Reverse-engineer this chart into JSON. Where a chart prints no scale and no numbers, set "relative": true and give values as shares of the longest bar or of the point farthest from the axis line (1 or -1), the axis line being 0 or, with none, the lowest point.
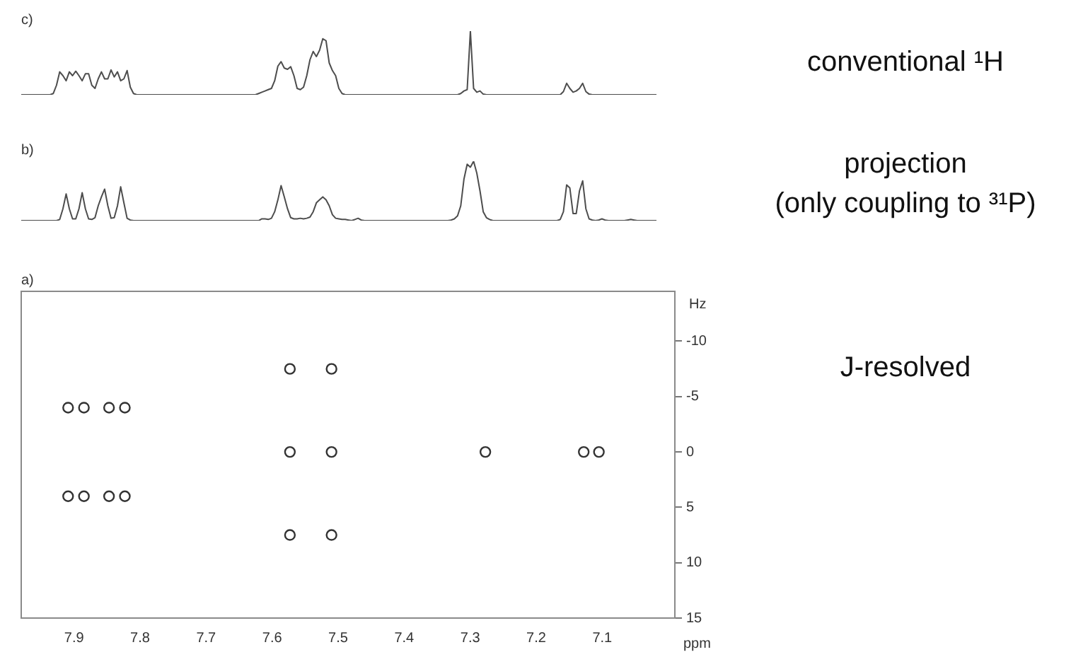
{
  "chart_data": [
    {
      "type": "line",
      "title": "c)",
      "relative": true,
      "annotations": [
        "conventional ¹H"
      ],
      "categories": [
        null,
        null,
        null,
        null,
        null,
        null,
        null,
        null,
        null,
        null,
        null,
        null,
        null,
        null,
        null,
        null,
        null,
        null,
        null,
        null,
        null,
        null,
        null,
        null,
        null,
        null,
        null,
        null,
        null,
        null,
        null,
        null,
        null,
        null,
        null,
        null,
        null,
        null,
        null,
        null,
        null,
        null,
        null,
        null,
        null,
        null,
        null,
        null,
        null,
        null,
        null,
        null,
        null,
        null,
        null,
        null,
        null,
        null,
        null,
        null,
        null,
        null,
        null,
        null,
        null,
        null,
        null,
        null,
        null,
        null,
        null,
        null,
        null,
        null,
        null,
        null,
        null,
        null,
        null,
        null,
        null,
        null,
        null,
        null,
        null,
        null,
        null,
        null,
        null,
        null,
        null,
        null,
        null,
        null,
        null,
        null,
        null,
        null,
        null,
        null,
        null,
        null,
        null,
        null,
        null,
        null,
        null,
        null,
        null,
        null,
        null,
        null,
        null,
        null,
        null,
        null,
        null,
        null,
        null,
        null,
        null,
        null,
        null,
        null,
        null,
        null,
        null,
        null,
        null,
        null,
        null,
        null,
        null,
        null,
        null,
        null,
        null,
        null,
        null,
        null,
        null,
        null,
        null,
        null,
        null,
        null,
        null,
        null,
        null,
        null,
        null,
        null,
        null,
        null,
        null,
        null,
        null,
        null,
        null,
        null,
        null,
        null,
        null,
        null,
        null,
        null,
        null,
        null,
        null,
        null,
        null,
        null,
        null,
        null,
        null,
        null,
        null,
        null,
        null,
        null,
        null,
        null,
        null,
        null,
        null,
        null,
        null,
        null,
        null,
        null,
        null,
        null,
        null,
        null,
        null,
        null,
        null,
        null,
        null
      ],
      "series": [
        {
          "color": "#4d4d4d",
          "values": [
            0,
            0,
            0,
            0,
            0,
            0,
            0,
            0,
            0,
            0,
            0.02,
            0.15,
            0.36,
            0.3,
            0.22,
            0.36,
            0.3,
            0.37,
            0.3,
            0.22,
            0.33,
            0.33,
            0.15,
            0.1,
            0.25,
            0.36,
            0.25,
            0.25,
            0.39,
            0.28,
            0.36,
            0.22,
            0.25,
            0.38,
            0.12,
            0.02,
            0,
            0,
            0,
            0,
            0,
            0,
            0,
            0,
            0,
            0,
            0,
            0,
            0,
            0,
            0,
            0,
            0,
            0,
            0,
            0,
            0,
            0,
            0,
            0,
            0,
            0,
            0,
            0,
            0,
            0,
            0,
            0,
            0,
            0,
            0,
            0,
            0,
            0,
            0.02,
            0.04,
            0.06,
            0.08,
            0.1,
            0.22,
            0.45,
            0.52,
            0.42,
            0.4,
            0.44,
            0.3,
            0.1,
            0.08,
            0.12,
            0.3,
            0.55,
            0.68,
            0.6,
            0.7,
            0.88,
            0.85,
            0.5,
            0.38,
            0.3,
            0.1,
            0.02,
            0,
            0,
            0,
            0,
            0,
            0,
            0,
            0,
            0,
            0,
            0,
            0,
            0,
            0,
            0,
            0,
            0,
            0,
            0,
            0,
            0,
            0,
            0,
            0,
            0,
            0,
            0,
            0,
            0,
            0,
            0,
            0,
            0,
            0,
            0,
            0,
            0.02,
            0.06,
            0.08,
            1,
            0.1,
            0.04,
            0.06,
            0.01,
            0,
            0,
            0,
            0,
            0,
            0,
            0,
            0,
            0,
            0,
            0,
            0,
            0,
            0,
            0,
            0,
            0,
            0,
            0,
            0,
            0,
            0,
            0,
            0,
            0.05,
            0.18,
            0.1,
            0.04,
            0.06,
            0.1,
            0.18,
            0.05,
            0.01,
            0,
            0,
            0,
            0,
            0,
            0,
            0,
            0,
            0,
            0,
            0,
            0,
            0,
            0,
            0,
            0,
            0,
            0,
            0,
            0,
            0
          ]
        }
      ]
    },
    {
      "type": "line",
      "title": "b)",
      "relative": true,
      "annotations": [
        "projection\n(only coupling to ³¹P)"
      ],
      "categories": [
        null,
        null,
        null,
        null,
        null,
        null,
        null,
        null,
        null,
        null,
        null,
        null,
        null,
        null,
        null,
        null,
        null,
        null,
        null,
        null,
        null,
        null,
        null,
        null,
        null,
        null,
        null,
        null,
        null,
        null,
        null,
        null,
        null,
        null,
        null,
        null,
        null,
        null,
        null,
        null,
        null,
        null,
        null,
        null,
        null,
        null,
        null,
        null,
        null,
        null,
        null,
        null,
        null,
        null,
        null,
        null,
        null,
        null,
        null,
        null,
        null,
        null,
        null,
        null,
        null,
        null,
        null,
        null,
        null,
        null,
        null,
        null,
        null,
        null,
        null,
        null,
        null,
        null,
        null,
        null,
        null,
        null,
        null,
        null,
        null,
        null,
        null,
        null,
        null,
        null,
        null,
        null,
        null,
        null,
        null,
        null,
        null,
        null,
        null,
        null,
        null,
        null,
        null,
        null,
        null,
        null,
        null,
        null,
        null,
        null,
        null,
        null,
        null,
        null,
        null,
        null,
        null,
        null,
        null,
        null,
        null,
        null,
        null,
        null,
        null,
        null,
        null,
        null,
        null,
        null,
        null,
        null,
        null,
        null,
        null,
        null,
        null,
        null,
        null,
        null,
        null,
        null,
        null,
        null,
        null,
        null,
        null,
        null,
        null,
        null,
        null,
        null,
        null,
        null,
        null,
        null,
        null,
        null,
        null,
        null,
        null,
        null,
        null,
        null,
        null,
        null,
        null,
        null,
        null,
        null,
        null,
        null,
        null,
        null,
        null,
        null,
        null,
        null,
        null,
        null,
        null,
        null,
        null,
        null,
        null,
        null,
        null,
        null,
        null,
        null,
        null,
        null,
        null,
        null,
        null,
        null,
        null,
        null,
        null
      ],
      "series": [
        {
          "color": "#4d4d4d",
          "values": [
            0,
            0,
            0,
            0,
            0,
            0,
            0,
            0,
            0,
            0,
            0,
            0,
            0.02,
            0.2,
            0.45,
            0.2,
            0.03,
            0.03,
            0.2,
            0.47,
            0.2,
            0.03,
            0.02,
            0.05,
            0.25,
            0.4,
            0.53,
            0.25,
            0.04,
            0.05,
            0.25,
            0.57,
            0.3,
            0.04,
            0.01,
            0,
            0,
            0,
            0,
            0,
            0,
            0,
            0,
            0,
            0,
            0,
            0,
            0,
            0,
            0,
            0,
            0,
            0,
            0,
            0,
            0,
            0,
            0,
            0,
            0,
            0,
            0,
            0,
            0,
            0,
            0,
            0,
            0,
            0,
            0,
            0,
            0,
            0,
            0,
            0,
            0.03,
            0.03,
            0.02,
            0.04,
            0.15,
            0.35,
            0.59,
            0.4,
            0.2,
            0.05,
            0.03,
            0.03,
            0.04,
            0.03,
            0.04,
            0.06,
            0.15,
            0.3,
            0.35,
            0.4,
            0.35,
            0.25,
            0.1,
            0.04,
            0.03,
            0.02,
            0.02,
            0.01,
            0,
            0.02,
            0.04,
            0.01,
            0,
            0,
            0,
            0,
            0,
            0,
            0,
            0,
            0,
            0,
            0,
            0,
            0,
            0,
            0,
            0,
            0,
            0,
            0,
            0,
            0,
            0,
            0,
            0,
            0,
            0,
            0,
            0.01,
            0.03,
            0.08,
            0.25,
            0.7,
            0.95,
            0.9,
            1,
            0.8,
            0.5,
            0.15,
            0.05,
            0.02,
            0,
            0,
            0,
            0,
            0,
            0,
            0,
            0,
            0,
            0,
            0,
            0,
            0,
            0,
            0,
            0,
            0,
            0,
            0,
            0,
            0,
            0.02,
            0.15,
            0.6,
            0.55,
            0.12,
            0.12,
            0.5,
            0.67,
            0.2,
            0.03,
            0.01,
            0,
            0.01,
            0.03,
            0.01,
            0,
            0,
            0,
            0,
            0,
            0,
            0.01,
            0.02,
            0.01,
            0,
            0,
            0,
            0,
            0,
            0,
            0
          ]
        }
      ]
    },
    {
      "type": "scatter",
      "title": "a)",
      "xlabel": "ppm",
      "ylabel": "Hz",
      "annotations": [
        "J-resolved"
      ],
      "marker": "circle",
      "xlim": [
        7.98,
        6.99
      ],
      "xticks": [
        7.9,
        7.8,
        7.7,
        7.6,
        7.5,
        7.4,
        7.3,
        7.2,
        7.1
      ],
      "ylim": [
        15,
        -14.5
      ],
      "yticks": [
        -10,
        -5,
        0,
        5,
        10,
        15
      ],
      "series": [
        {
          "color": "#333333",
          "x": [
            7.909,
            7.885,
            7.847,
            7.823,
            7.909,
            7.885,
            7.847,
            7.823,
            7.573,
            7.573,
            7.573,
            7.51,
            7.51,
            7.51,
            7.277,
            7.128,
            7.105
          ],
          "values": [
            -4,
            -4,
            -4,
            -4,
            4,
            4,
            4,
            4,
            -7.5,
            0,
            7.5,
            -7.5,
            0,
            7.5,
            0,
            0,
            0
          ]
        }
      ]
    }
  ]
}
